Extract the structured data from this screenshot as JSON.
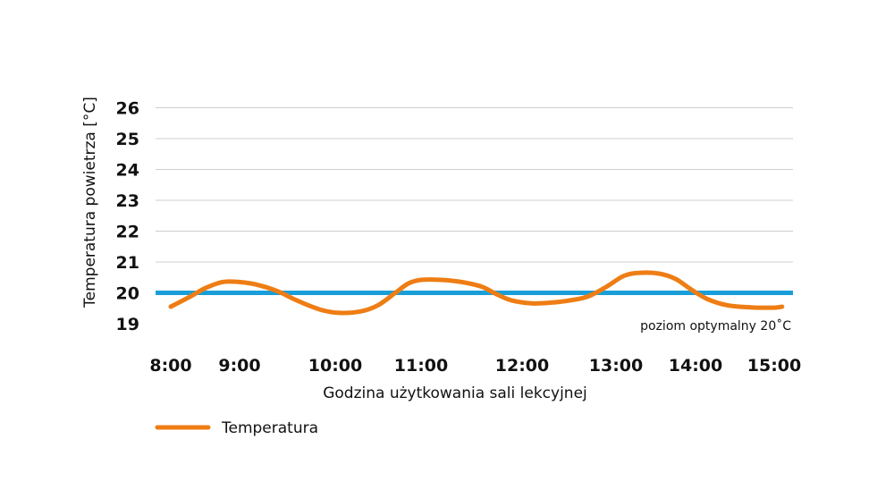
{
  "chart_data": {
    "type": "line",
    "xlabel": "Godzina użytkowania sali lekcyjnej",
    "ylabel": "Temperatura powietrza [°C]",
    "ylim": [
      19,
      26
    ],
    "yticks": [
      19,
      20,
      21,
      22,
      23,
      24,
      25,
      26
    ],
    "xticks": [
      {
        "label": "8:00",
        "value": 8.0
      },
      {
        "label": "9:00",
        "value": 9.0
      },
      {
        "label": "10:00",
        "value": 10.0
      },
      {
        "label": "11:00",
        "value": 11.0
      },
      {
        "label": "12:00",
        "value": 12.0
      },
      {
        "label": "13:00",
        "value": 13.0
      },
      {
        "label": "14:00",
        "value": 14.0
      },
      {
        "label": "15:00",
        "value": 15.0
      }
    ],
    "grid": true,
    "reference_line": {
      "value": 20,
      "label": "poziom optymalny 20˚C",
      "color": "#1a9ed9"
    },
    "series": [
      {
        "name": "Temperatura",
        "color": "#ee7d14",
        "points": [
          [
            8.0,
            19.55
          ],
          [
            8.3,
            19.9
          ],
          [
            8.5,
            20.15
          ],
          [
            8.75,
            20.35
          ],
          [
            9.0,
            20.35
          ],
          [
            9.2,
            20.25
          ],
          [
            9.4,
            20.05
          ],
          [
            9.6,
            19.75
          ],
          [
            9.85,
            19.45
          ],
          [
            10.05,
            19.35
          ],
          [
            10.3,
            19.4
          ],
          [
            10.5,
            19.6
          ],
          [
            10.7,
            20.0
          ],
          [
            10.85,
            20.3
          ],
          [
            11.0,
            20.42
          ],
          [
            11.2,
            20.42
          ],
          [
            11.4,
            20.35
          ],
          [
            11.6,
            20.2
          ],
          [
            11.75,
            19.95
          ],
          [
            11.9,
            19.75
          ],
          [
            12.1,
            19.66
          ],
          [
            12.3,
            19.68
          ],
          [
            12.5,
            19.75
          ],
          [
            12.7,
            19.88
          ],
          [
            12.9,
            20.2
          ],
          [
            13.1,
            20.55
          ],
          [
            13.3,
            20.65
          ],
          [
            13.55,
            20.62
          ],
          [
            13.75,
            20.45
          ],
          [
            13.95,
            20.1
          ],
          [
            14.15,
            19.8
          ],
          [
            14.4,
            19.6
          ],
          [
            14.7,
            19.53
          ],
          [
            15.0,
            19.52
          ],
          [
            15.1,
            19.55
          ]
        ]
      }
    ],
    "legend": {
      "position": "bottom-left",
      "entries": [
        "Temperatura"
      ]
    }
  }
}
